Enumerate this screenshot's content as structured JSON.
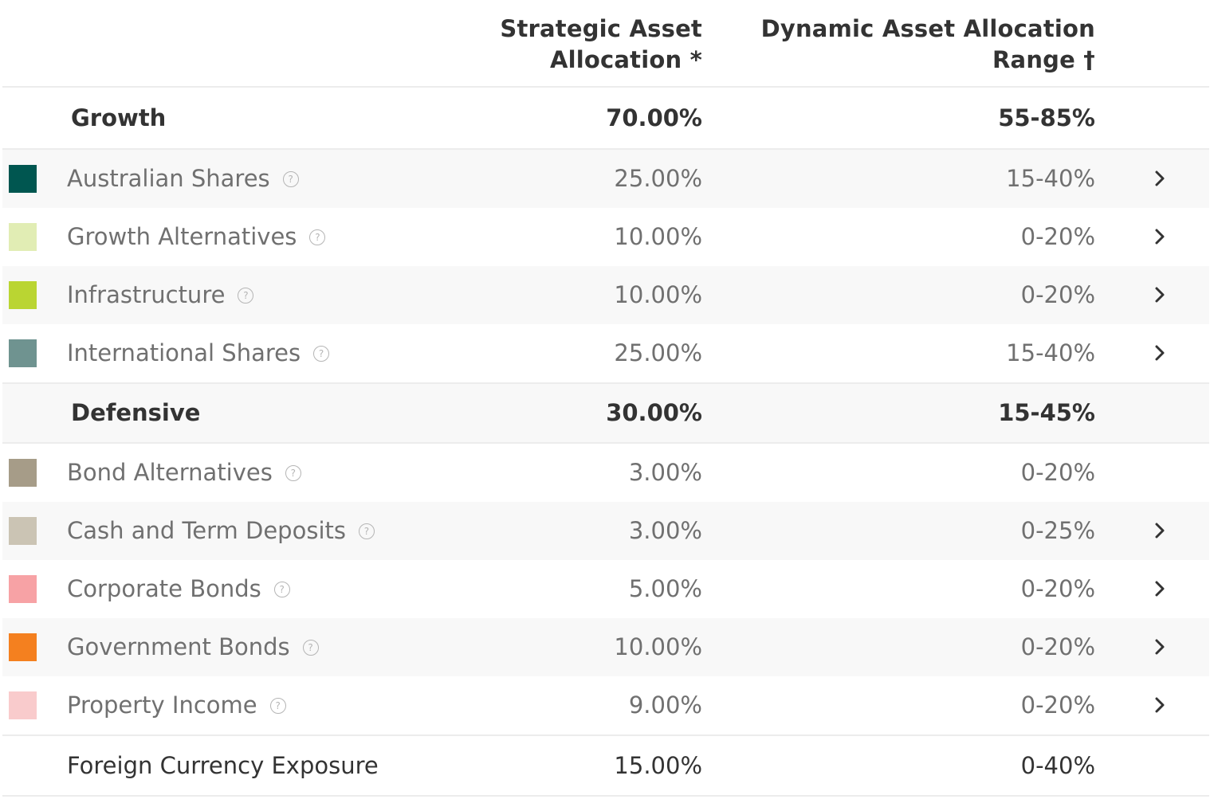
{
  "header": {
    "saa_line1": "Strategic Asset",
    "saa_line2": "Allocation *",
    "daa_line1": "Dynamic Asset Allocation",
    "daa_line2": "Range †"
  },
  "growth": {
    "label": "Growth",
    "saa": "70.00%",
    "daa": "55-85%",
    "items": [
      {
        "label": "Australian Shares",
        "saa": "25.00%",
        "daa": "15-40%",
        "color": "#005650",
        "icon": "chevron-right-icon"
      },
      {
        "label": "Growth Alternatives",
        "saa": "10.00%",
        "daa": "0-20%",
        "color": "#e1edb4",
        "icon": "chevron-right-icon"
      },
      {
        "label": "Infrastructure",
        "saa": "10.00%",
        "daa": "0-20%",
        "color": "#bad532",
        "icon": "chevron-right-icon"
      },
      {
        "label": "International Shares",
        "saa": "25.00%",
        "daa": "15-40%",
        "color": "#6f9390",
        "icon": "chevron-right-icon"
      }
    ]
  },
  "defensive": {
    "label": "Defensive",
    "saa": "30.00%",
    "daa": "15-45%",
    "items": [
      {
        "label": "Bond Alternatives",
        "saa": "3.00%",
        "daa": "0-20%",
        "color": "#a69c88"
      },
      {
        "label": "Cash and Term Deposits",
        "saa": "3.00%",
        "daa": "0-25%",
        "color": "#cbc4b4",
        "icon": "chevron-right-icon"
      },
      {
        "label": "Corporate Bonds",
        "saa": "5.00%",
        "daa": "0-20%",
        "color": "#f7a2a5",
        "icon": "chevron-right-icon"
      },
      {
        "label": "Government Bonds",
        "saa": "10.00%",
        "daa": "0-20%",
        "color": "#f4801f",
        "icon": "chevron-right-icon"
      },
      {
        "label": "Property Income",
        "saa": "9.00%",
        "daa": "0-20%",
        "color": "#f9cbcc",
        "icon": "chevron-right-icon"
      }
    ]
  },
  "currency": {
    "label": "Foreign Currency Exposure",
    "saa": "15.00%",
    "daa": "0-40%"
  },
  "help_glyph": "?"
}
